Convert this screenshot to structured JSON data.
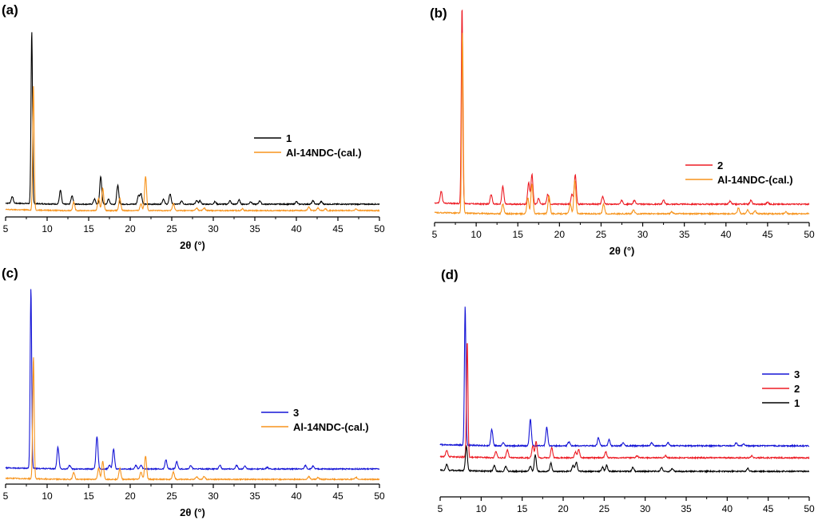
{
  "chart_data": [
    {
      "panel": "(a)",
      "type": "line",
      "xlabel": "2θ (°)",
      "xlim": [
        5,
        50
      ],
      "xticks": [
        5,
        10,
        15,
        20,
        25,
        30,
        35,
        40,
        45,
        50
      ],
      "series": [
        {
          "name": "1",
          "color": "#000000",
          "baseline": 8,
          "peaks": [
            [
              5.8,
              0.04
            ],
            [
              8.15,
              1.0
            ],
            [
              11.6,
              0.08
            ],
            [
              13.0,
              0.05
            ],
            [
              15.7,
              0.03
            ],
            [
              16.45,
              0.16
            ],
            [
              17.4,
              0.03
            ],
            [
              18.5,
              0.11
            ],
            [
              21.0,
              0.05
            ],
            [
              21.3,
              0.06
            ],
            [
              24.0,
              0.03
            ],
            [
              24.8,
              0.06
            ],
            [
              26.2,
              0.02
            ],
            [
              28.0,
              0.02
            ],
            [
              28.4,
              0.02
            ],
            [
              30.2,
              0.015
            ],
            [
              32.0,
              0.02
            ],
            [
              33.1,
              0.025
            ],
            [
              34.5,
              0.015
            ],
            [
              35.6,
              0.02
            ],
            [
              40.0,
              0.015
            ],
            [
              42.0,
              0.02
            ],
            [
              43.0,
              0.015
            ]
          ]
        },
        {
          "name": "Al-14NDC-(cal.)",
          "color": "#f7941d",
          "baseline": 0,
          "peaks": [
            [
              8.35,
              0.72
            ],
            [
              13.2,
              0.05
            ],
            [
              16.2,
              0.07
            ],
            [
              16.7,
              0.13
            ],
            [
              18.75,
              0.07
            ],
            [
              21.3,
              0.04
            ],
            [
              21.85,
              0.2
            ],
            [
              25.2,
              0.04
            ],
            [
              28.0,
              0.015
            ],
            [
              28.9,
              0.015
            ],
            [
              33.5,
              0.01
            ],
            [
              41.5,
              0.02
            ],
            [
              42.6,
              0.015
            ],
            [
              43.5,
              0.01
            ],
            [
              47.2,
              0.01
            ]
          ]
        }
      ]
    },
    {
      "panel": "(b)",
      "type": "line",
      "xlabel": "2θ (°)",
      "xlim": [
        5,
        50
      ],
      "xticks": [
        5,
        10,
        15,
        20,
        25,
        30,
        35,
        40,
        45,
        50
      ],
      "series": [
        {
          "name": "2",
          "color": "#ed1c24",
          "baseline": 12,
          "peaks": [
            [
              5.8,
              0.06
            ],
            [
              8.3,
              1.0
            ],
            [
              11.8,
              0.05
            ],
            [
              13.2,
              0.09
            ],
            [
              16.3,
              0.11
            ],
            [
              16.7,
              0.15
            ],
            [
              17.5,
              0.03
            ],
            [
              18.6,
              0.05
            ],
            [
              21.5,
              0.05
            ],
            [
              21.9,
              0.15
            ],
            [
              25.2,
              0.04
            ],
            [
              27.5,
              0.02
            ],
            [
              29.0,
              0.02
            ],
            [
              32.5,
              0.02
            ],
            [
              40.5,
              0.015
            ],
            [
              43.0,
              0.02
            ],
            [
              45.0,
              0.01
            ]
          ]
        },
        {
          "name": "Al-14NDC-(cal.)",
          "color": "#f7941d",
          "baseline": 0,
          "peaks": [
            [
              8.35,
              0.92
            ],
            [
              13.2,
              0.05
            ],
            [
              16.2,
              0.08
            ],
            [
              16.7,
              0.15
            ],
            [
              18.75,
              0.09
            ],
            [
              21.3,
              0.05
            ],
            [
              21.85,
              0.17
            ],
            [
              25.3,
              0.05
            ],
            [
              28.9,
              0.02
            ],
            [
              33.5,
              0.01
            ],
            [
              41.5,
              0.03
            ],
            [
              42.6,
              0.02
            ],
            [
              43.5,
              0.015
            ],
            [
              47.2,
              0.01
            ]
          ]
        }
      ]
    },
    {
      "panel": "(c)",
      "type": "line",
      "xlabel": "2θ (°)",
      "xlim": [
        5,
        50
      ],
      "xticks": [
        5,
        10,
        15,
        20,
        25,
        30,
        35,
        40,
        45,
        50
      ],
      "series": [
        {
          "name": "3",
          "color": "#1515d6",
          "baseline": 13,
          "peaks": [
            [
              8.05,
              1.0
            ],
            [
              11.3,
              0.12
            ],
            [
              12.7,
              0.02
            ],
            [
              16.0,
              0.18
            ],
            [
              17.5,
              0.02
            ],
            [
              18.0,
              0.11
            ],
            [
              20.7,
              0.02
            ],
            [
              21.3,
              0.02
            ],
            [
              24.3,
              0.05
            ],
            [
              25.6,
              0.04
            ],
            [
              27.3,
              0.02
            ],
            [
              30.8,
              0.02
            ],
            [
              32.8,
              0.02
            ],
            [
              33.8,
              0.015
            ],
            [
              36.5,
              0.01
            ],
            [
              41.1,
              0.02
            ],
            [
              42.0,
              0.015
            ]
          ]
        },
        {
          "name": "Al-14NDC-(cal.)",
          "color": "#f7941d",
          "baseline": 0,
          "peaks": [
            [
              8.35,
              0.68
            ],
            [
              13.2,
              0.04
            ],
            [
              16.2,
              0.06
            ],
            [
              16.7,
              0.1
            ],
            [
              18.75,
              0.06
            ],
            [
              21.3,
              0.04
            ],
            [
              21.85,
              0.13
            ],
            [
              25.2,
              0.04
            ],
            [
              28.0,
              0.015
            ],
            [
              28.9,
              0.015
            ],
            [
              41.5,
              0.015
            ],
            [
              42.6,
              0.01
            ],
            [
              47.2,
              0.01
            ]
          ]
        }
      ]
    },
    {
      "panel": "(d)",
      "type": "line",
      "xlabel": "2θ (°)",
      "xlim": [
        5,
        50
      ],
      "xticks": [
        5,
        10,
        15,
        20,
        25,
        30,
        35,
        40,
        45,
        50
      ],
      "series": [
        {
          "name": "3",
          "color": "#1515d6",
          "baseline": 32,
          "peaks": [
            [
              8.05,
              0.68
            ],
            [
              11.3,
              0.08
            ],
            [
              12.7,
              0.015
            ],
            [
              16.0,
              0.13
            ],
            [
              18.0,
              0.09
            ],
            [
              20.7,
              0.02
            ],
            [
              24.3,
              0.04
            ],
            [
              25.6,
              0.03
            ],
            [
              27.3,
              0.015
            ],
            [
              30.8,
              0.015
            ],
            [
              32.8,
              0.015
            ],
            [
              41.1,
              0.015
            ],
            [
              42.0,
              0.01
            ]
          ]
        },
        {
          "name": "2",
          "color": "#ed1c24",
          "baseline": 17,
          "peaks": [
            [
              5.8,
              0.03
            ],
            [
              8.3,
              0.57
            ],
            [
              11.8,
              0.03
            ],
            [
              13.2,
              0.04
            ],
            [
              16.3,
              0.06
            ],
            [
              16.7,
              0.08
            ],
            [
              18.6,
              0.05
            ],
            [
              21.5,
              0.03
            ],
            [
              21.9,
              0.04
            ],
            [
              25.2,
              0.03
            ],
            [
              29.0,
              0.01
            ],
            [
              32.5,
              0.01
            ],
            [
              43.0,
              0.01
            ]
          ]
        },
        {
          "name": "1",
          "color": "#000000",
          "baseline": 0,
          "peaks": [
            [
              5.8,
              0.03
            ],
            [
              8.2,
              0.12
            ],
            [
              11.6,
              0.03
            ],
            [
              13.0,
              0.025
            ],
            [
              16.0,
              0.025
            ],
            [
              16.6,
              0.08
            ],
            [
              18.5,
              0.04
            ],
            [
              21.2,
              0.03
            ],
            [
              21.6,
              0.045
            ],
            [
              24.8,
              0.02
            ],
            [
              25.3,
              0.03
            ],
            [
              28.5,
              0.02
            ],
            [
              32.0,
              0.02
            ],
            [
              33.3,
              0.015
            ],
            [
              42.5,
              0.015
            ]
          ]
        }
      ]
    }
  ]
}
